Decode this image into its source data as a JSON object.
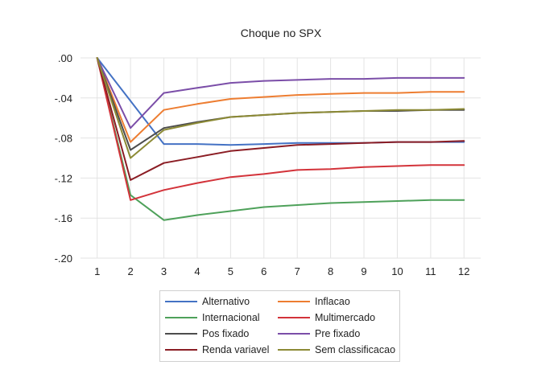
{
  "chart_data": {
    "type": "line",
    "title": "Choque no SPX",
    "xlabel": "",
    "ylabel": "",
    "x": [
      1,
      2,
      3,
      4,
      5,
      6,
      7,
      8,
      9,
      10,
      11,
      12
    ],
    "ylim": [
      -0.2,
      0.0
    ],
    "yticks": [
      0.0,
      -0.04,
      -0.08,
      -0.12,
      -0.16,
      -0.2
    ],
    "ytick_labels": [
      ".00",
      "-.04",
      "-.08",
      "-.12",
      "-.16",
      "-.20"
    ],
    "xtick_labels": [
      "1",
      "2",
      "3",
      "4",
      "5",
      "6",
      "7",
      "8",
      "9",
      "10",
      "11",
      "12"
    ],
    "grid": true,
    "legend_position": "bottom",
    "series": [
      {
        "name": "Alternativo",
        "color": "#4472c4",
        "values": [
          0.0,
          -0.043,
          -0.086,
          -0.086,
          -0.087,
          -0.086,
          -0.085,
          -0.085,
          -0.085,
          -0.084,
          -0.084,
          -0.084
        ]
      },
      {
        "name": "Inflacao",
        "color": "#ed7d31",
        "values": [
          0.0,
          -0.084,
          -0.052,
          -0.046,
          -0.041,
          -0.039,
          -0.037,
          -0.036,
          -0.035,
          -0.035,
          -0.034,
          -0.034
        ]
      },
      {
        "name": "Internacional",
        "color": "#4ea15a",
        "values": [
          0.0,
          -0.137,
          -0.162,
          -0.157,
          -0.153,
          -0.149,
          -0.147,
          -0.145,
          -0.144,
          -0.143,
          -0.142,
          -0.142
        ]
      },
      {
        "name": "Multimercado",
        "color": "#d3333a",
        "values": [
          0.0,
          -0.142,
          -0.132,
          -0.125,
          -0.119,
          -0.116,
          -0.112,
          -0.111,
          -0.109,
          -0.108,
          -0.107,
          -0.107
        ]
      },
      {
        "name": "Pos fixado",
        "color": "#4d4d4d",
        "values": [
          0.0,
          -0.092,
          -0.07,
          -0.064,
          -0.059,
          -0.057,
          -0.055,
          -0.054,
          -0.053,
          -0.053,
          -0.052,
          -0.052
        ]
      },
      {
        "name": "Pre fixado",
        "color": "#7b4ea8",
        "values": [
          0.0,
          -0.07,
          -0.035,
          -0.03,
          -0.025,
          -0.023,
          -0.022,
          -0.021,
          -0.021,
          -0.02,
          -0.02,
          -0.02
        ]
      },
      {
        "name": "Renda variavel",
        "color": "#8b1d24",
        "values": [
          0.0,
          -0.122,
          -0.105,
          -0.099,
          -0.093,
          -0.09,
          -0.087,
          -0.086,
          -0.085,
          -0.084,
          -0.084,
          -0.083
        ]
      },
      {
        "name": "Sem classificacao",
        "color": "#8c8a35",
        "values": [
          0.0,
          -0.1,
          -0.072,
          -0.065,
          -0.059,
          -0.057,
          -0.055,
          -0.054,
          -0.053,
          -0.052,
          -0.052,
          -0.051
        ]
      }
    ]
  }
}
